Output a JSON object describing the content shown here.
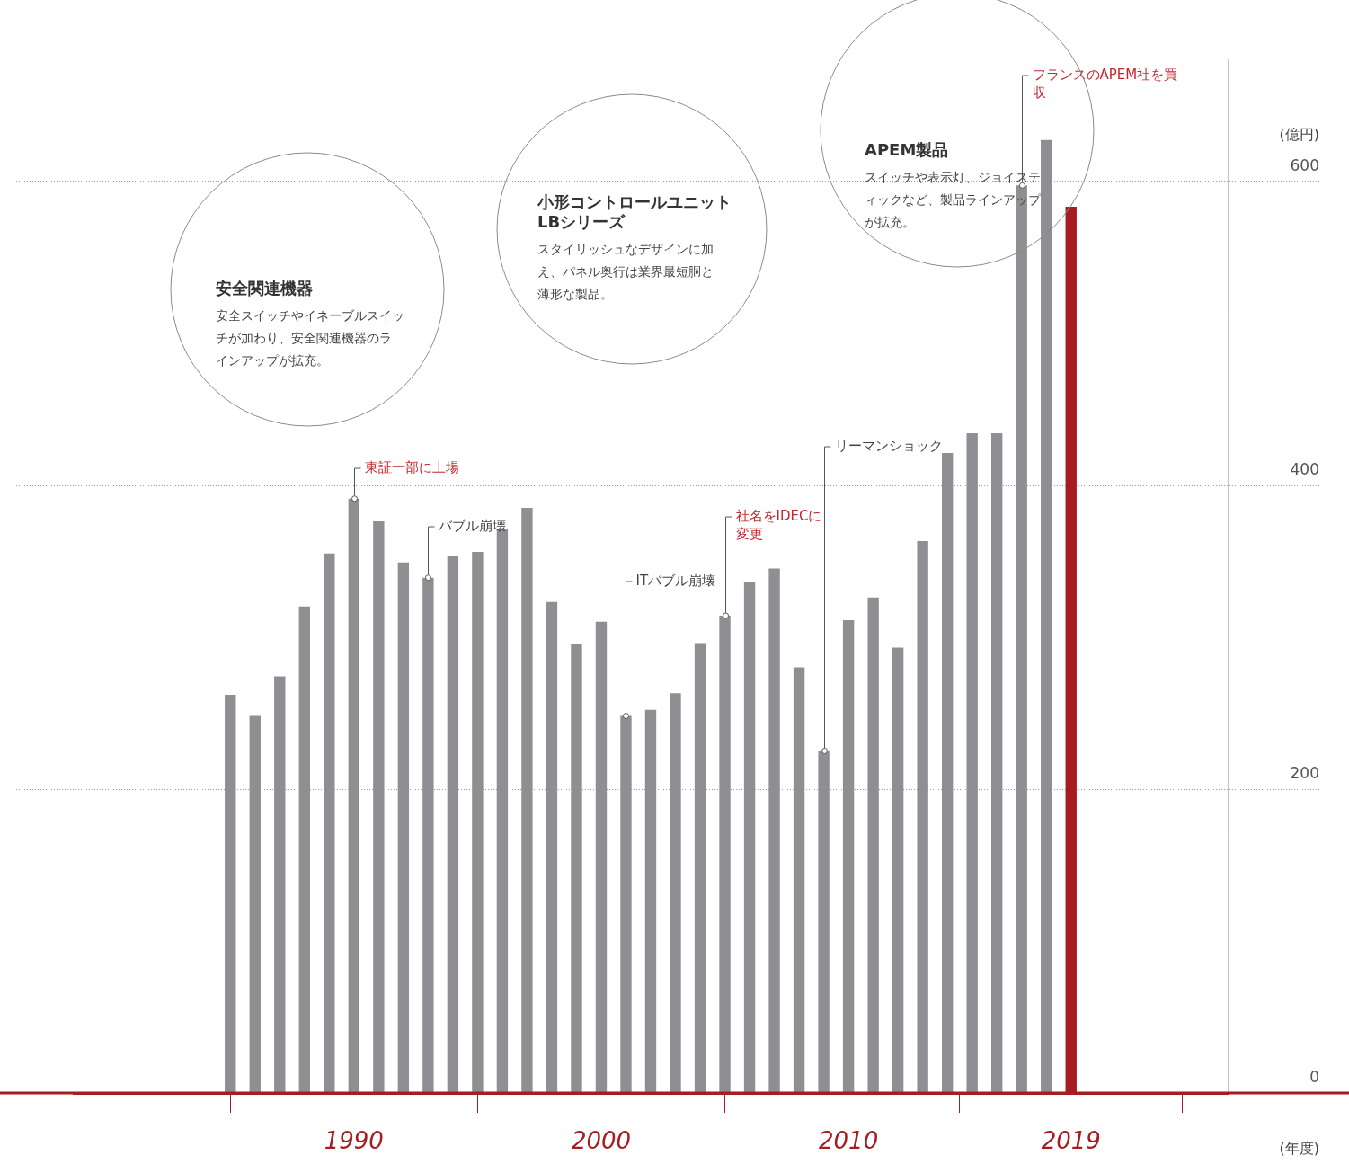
{
  "chart_data": {
    "type": "bar",
    "x": [
      1985,
      1986,
      1987,
      1988,
      1989,
      1990,
      1991,
      1992,
      1993,
      1994,
      1995,
      1996,
      1997,
      1998,
      1999,
      2000,
      2001,
      2002,
      2003,
      2004,
      2005,
      2006,
      2007,
      2008,
      2009,
      2010,
      2011,
      2012,
      2013,
      2014,
      2015,
      2016,
      2017,
      2018,
      2019
    ],
    "values": [
      262,
      248,
      274,
      320,
      355,
      391,
      376,
      349,
      339,
      353,
      356,
      371,
      385,
      323,
      295,
      310,
      248,
      252,
      263,
      296,
      314,
      336,
      345,
      280,
      225,
      311,
      326,
      293,
      363,
      421,
      434,
      434,
      597,
      627,
      583
    ],
    "colors": [
      "#8e8f92",
      "#8e8f92",
      "#8e8f92",
      "#8e8f92",
      "#8e8f92",
      "#8e8f92",
      "#8e8f92",
      "#8e8f92",
      "#8e8f92",
      "#8e8f92",
      "#8e8f92",
      "#8e8f92",
      "#8e8f92",
      "#8e8f92",
      "#8e8f92",
      "#8e8f92",
      "#8e8f92",
      "#8e8f92",
      "#8e8f92",
      "#8e8f92",
      "#8e8f92",
      "#8e8f92",
      "#8e8f92",
      "#8e8f92",
      "#8e8f92",
      "#8e8f92",
      "#8e8f92",
      "#8e8f92",
      "#8e8f92",
      "#8e8f92",
      "#8e8f92",
      "#8e8f92",
      "#8e8f92",
      "#8e8f92",
      "#a61c20"
    ],
    "xlim": [
      1984.5,
      2019.5
    ],
    "xticks": [
      1990,
      2000,
      2010,
      2019
    ],
    "ylim": [
      0,
      680
    ],
    "yticks": [
      0,
      200,
      400,
      600
    ],
    "x_label": "(年度)",
    "y_label": "(億円)",
    "grid": true,
    "annotations": [
      {
        "text": "東証一部に上場",
        "x": 1990,
        "color": "#c0272d"
      },
      {
        "text": "バブル崩壊",
        "x": 1993,
        "color": "#444444"
      },
      {
        "text": "ITバブル崩壊",
        "x": 2001,
        "color": "#444444"
      },
      {
        "text": "社名をIDECに変更",
        "x": 2005,
        "color": "#c0272d"
      },
      {
        "text": "リーマンショック",
        "x": 2009,
        "color": "#444444"
      },
      {
        "text": "フランスのAPEM社を買収",
        "x": 2017,
        "color": "#c0272d"
      }
    ],
    "callouts": [
      {
        "title": "安全関連機器",
        "text": "安全スイッチやイネーブルスイッチが加わり、安全関連機器のラインアップが拡充。"
      },
      {
        "title": "小形コントロールユニットLBシリーズ",
        "text": "スタイリッシュなデザインに加え、パネル奥行は業界最短胴と薄形な製品。"
      },
      {
        "title": "APEM製品",
        "text": "スイッチや表示灯、ジョイスティックなど、製品ラインアップが拡充。"
      }
    ]
  }
}
